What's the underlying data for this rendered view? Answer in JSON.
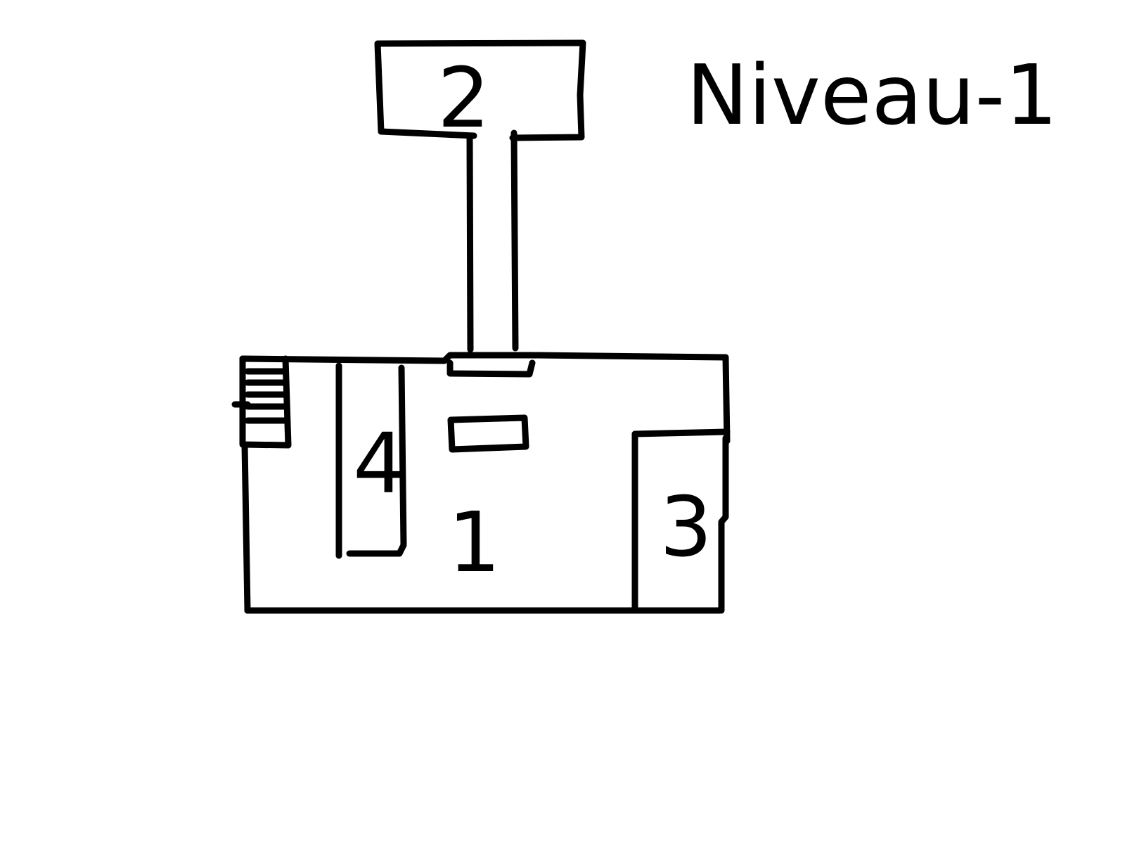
{
  "plan": {
    "level_title": "Niveau-1",
    "rooms": [
      {
        "label": "1"
      },
      {
        "label": "2"
      },
      {
        "label": "3"
      },
      {
        "label": "4"
      }
    ]
  },
  "colors": {
    "background": "#ffffff",
    "ink": "#000000"
  }
}
